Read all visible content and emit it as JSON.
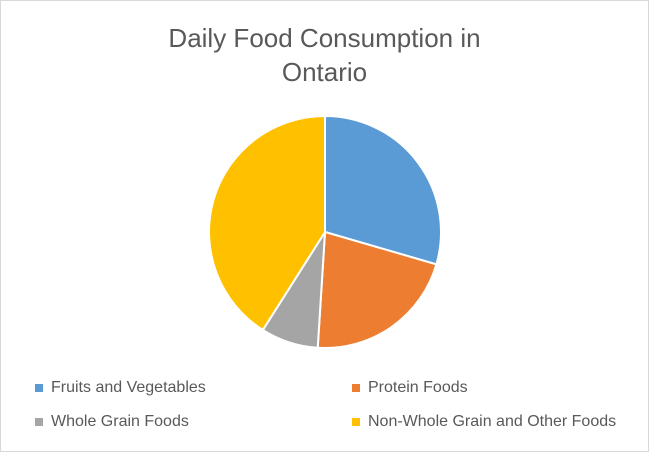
{
  "chart_data": {
    "type": "pie",
    "title_lines": [
      "Daily Food Consumption in",
      "Ontario"
    ],
    "categories": [
      "Fruits and Vegetables",
      "Protein Foods",
      "Whole Grain Foods",
      "Non-Whole Grain and Other Foods"
    ],
    "values": [
      29.5,
      21.5,
      8,
      41
    ],
    "colors": [
      "#5B9BD5",
      "#ED7D31",
      "#A5A5A5",
      "#FFC000"
    ],
    "legend_position": "bottom"
  }
}
